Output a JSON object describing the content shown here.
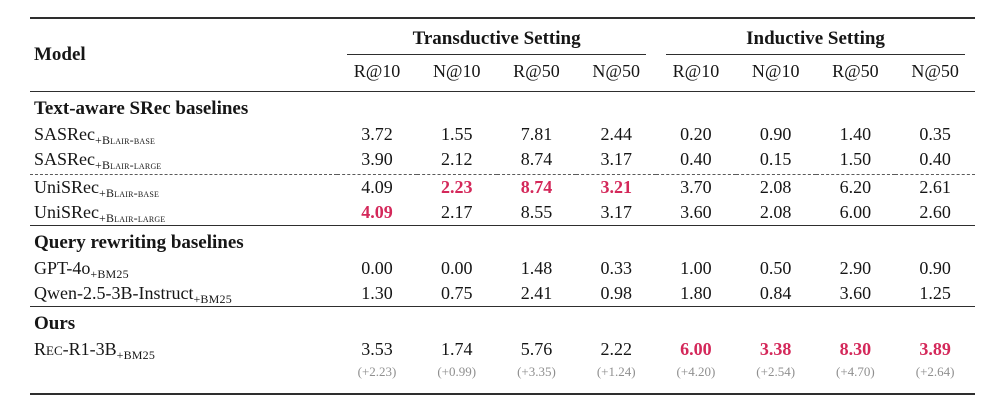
{
  "colors": {
    "highlight": "#d4285a",
    "delta_text": "#8f8f8f",
    "rule": "#2e2e2e",
    "text": "#161616"
  },
  "header": {
    "model_col": "Model",
    "groups": [
      {
        "label": "Transductive Setting"
      },
      {
        "label": "Inductive Setting"
      }
    ],
    "metrics": [
      "R@10",
      "N@10",
      "R@50",
      "N@50",
      "R@10",
      "N@10",
      "R@50",
      "N@50"
    ]
  },
  "rows": [
    {
      "kind": "section",
      "label": "Text-aware SRec baselines"
    },
    {
      "kind": "model",
      "name": "SASRec",
      "sub": "+Blair-base",
      "values": [
        "3.72",
        "1.55",
        "7.81",
        "2.44",
        "0.20",
        "0.90",
        "1.40",
        "0.35"
      ]
    },
    {
      "kind": "model",
      "name": "SASRec",
      "sub": "+Blair-large",
      "values": [
        "3.90",
        "2.12",
        "8.74",
        "3.17",
        "0.40",
        "0.15",
        "1.50",
        "0.40"
      ]
    },
    {
      "kind": "model",
      "name": "UniSRec",
      "sub": "+Blair-base",
      "values": [
        "4.09",
        "2.23",
        "8.74",
        "3.21",
        "3.70",
        "2.08",
        "6.20",
        "2.61"
      ],
      "highlighted_columns": [
        1,
        2,
        3
      ]
    },
    {
      "kind": "model",
      "name": "UniSRec",
      "sub": "+Blair-large",
      "values": [
        "4.09",
        "2.17",
        "8.55",
        "3.17",
        "3.60",
        "2.08",
        "6.00",
        "2.60"
      ],
      "highlighted_columns": [
        0
      ]
    },
    {
      "kind": "section",
      "label": "Query rewriting baselines"
    },
    {
      "kind": "model",
      "name": "GPT-4o",
      "sub": "+BM25",
      "values": [
        "0.00",
        "0.00",
        "1.48",
        "0.33",
        "1.00",
        "0.50",
        "2.90",
        "0.90"
      ]
    },
    {
      "kind": "model",
      "name": "Qwen-2.5-3B-Instruct",
      "sub": "+BM25",
      "values": [
        "1.30",
        "0.75",
        "2.41",
        "0.98",
        "1.80",
        "0.84",
        "3.60",
        "1.25"
      ]
    },
    {
      "kind": "section",
      "label": "Ours"
    },
    {
      "kind": "model",
      "name": "Rec-R1-3B",
      "sub": "+BM25",
      "values": [
        "3.53",
        "1.74",
        "5.76",
        "2.22",
        "6.00",
        "3.38",
        "8.30",
        "3.89"
      ],
      "highlighted_columns": [
        4,
        5,
        6,
        7
      ],
      "deltas": [
        "(+2.23)",
        "(+0.99)",
        "(+3.35)",
        "(+1.24)",
        "(+4.20)",
        "(+2.54)",
        "(+4.70)",
        "(+2.64)"
      ]
    }
  ]
}
